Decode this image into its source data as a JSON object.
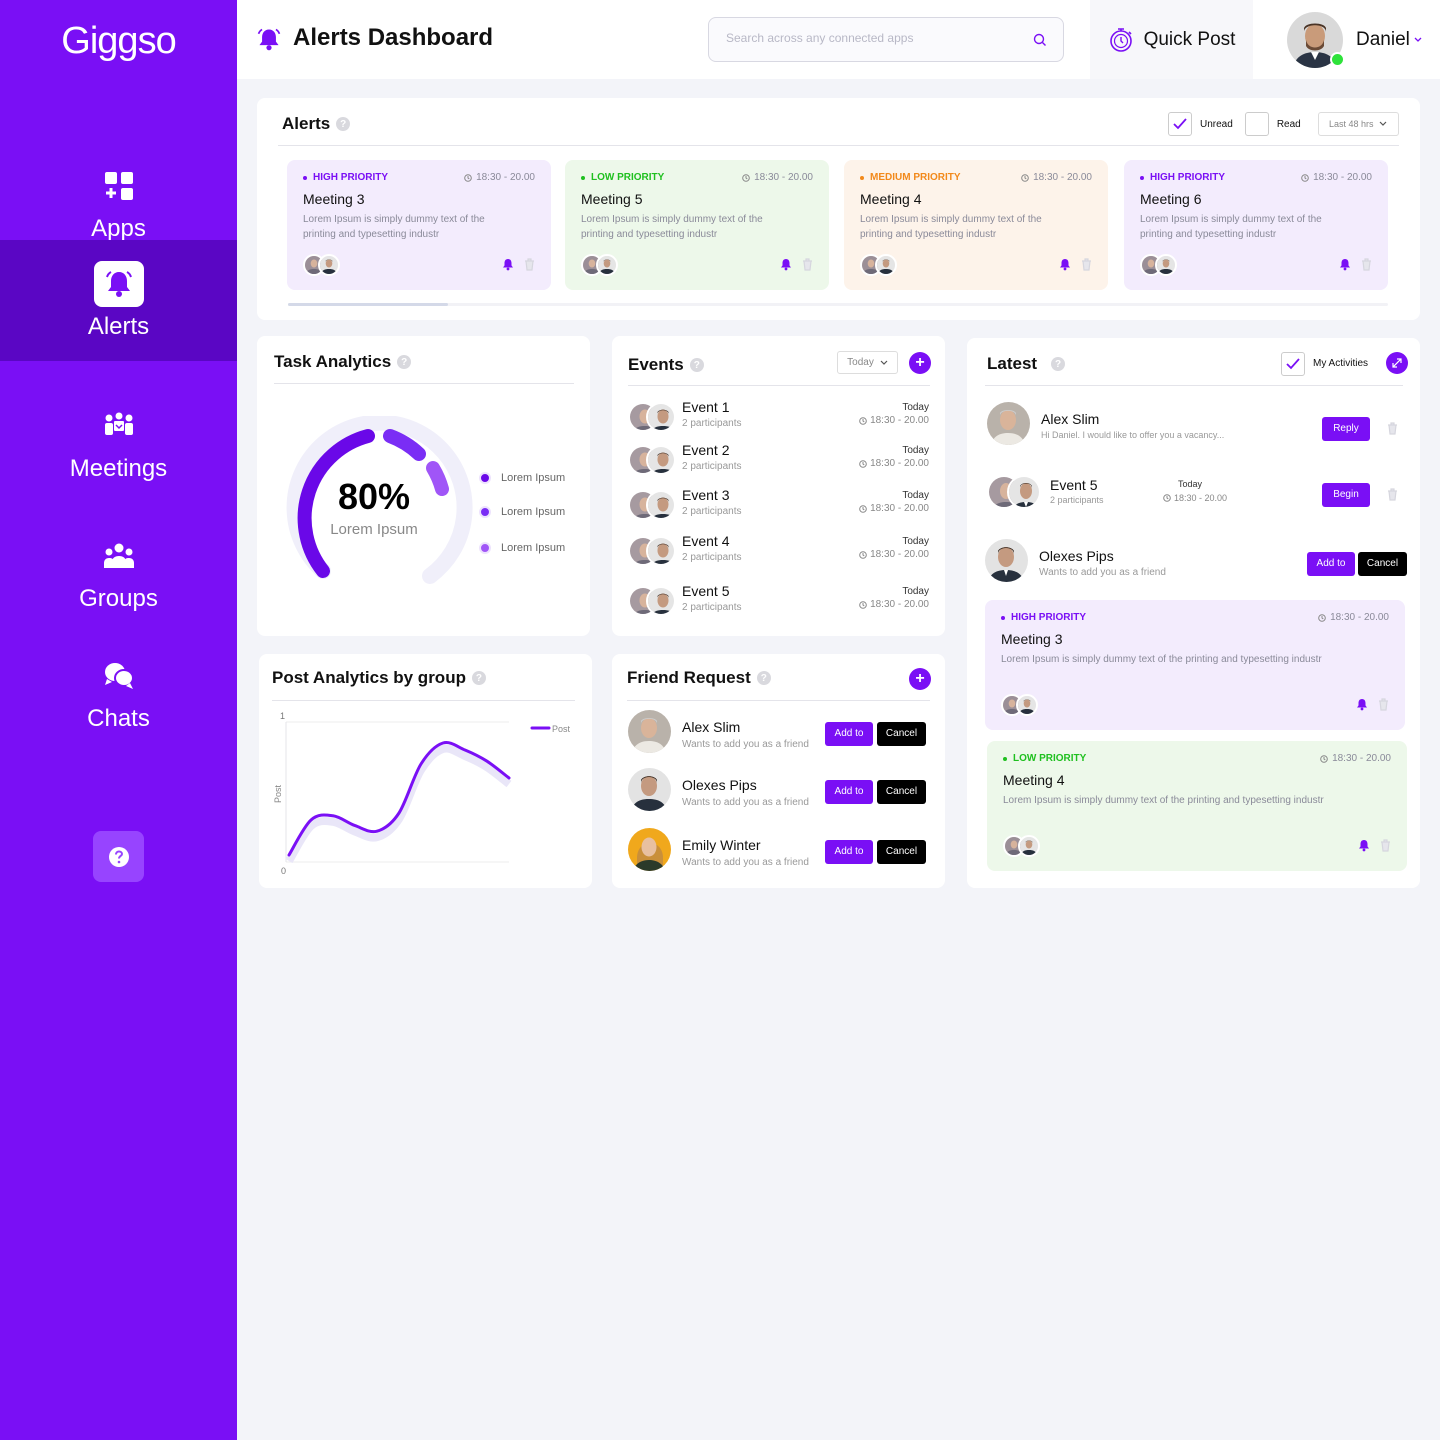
{
  "app": {
    "logo": "Giggso",
    "page_title": "Alerts Dashboard"
  },
  "nav": [
    {
      "label": "Apps",
      "icon": "apps-icon"
    },
    {
      "label": "Alerts",
      "icon": "bell-icon",
      "active": true
    },
    {
      "label": "Meetings",
      "icon": "meetings-icon"
    },
    {
      "label": "Groups",
      "icon": "groups-icon"
    },
    {
      "label": "Chats",
      "icon": "chats-icon"
    }
  ],
  "search": {
    "placeholder": "Search across any connected apps"
  },
  "quick_post": "Quick Post",
  "user": {
    "name": "Daniel",
    "status_color": "#2ee23a"
  },
  "colors": {
    "accent": "#7a0ff5",
    "sidebar": "#7a0ff5",
    "sidebar_active": "#5a06c4",
    "high": "#7a0ff5",
    "low": "#1fc01f",
    "medium": "#f2891b"
  },
  "alerts": {
    "title": "Alerts",
    "unread_label": "Unread",
    "read_label": "Read",
    "range": "Last 48 hrs",
    "cards": [
      {
        "priority": "HIGH PRIORITY",
        "time": "18:30 - 20.00",
        "title": "Meeting 3",
        "desc": "Lorem Ipsum is simply dummy text of the printing and typesetting industr"
      },
      {
        "priority": "LOW PRIORITY",
        "time": "18:30 - 20.00",
        "title": "Meeting 5",
        "desc": "Lorem Ipsum is simply dummy text of the printing and typesetting industr"
      },
      {
        "priority": "MEDIUM PRIORITY",
        "time": "18:30 - 20.00",
        "title": "Meeting 4",
        "desc": "Lorem Ipsum is simply dummy text of the printing and typesetting industr"
      },
      {
        "priority": "HIGH PRIORITY",
        "time": "18:30 - 20.00",
        "title": "Meeting 6",
        "desc": "Lorem Ipsum is simply dummy text of the printing and typesetting industr"
      }
    ]
  },
  "task_analytics": {
    "title": "Task Analytics",
    "percent": "80%",
    "percent_value": 80,
    "label": "Lorem Ipsum",
    "legend": [
      "Lorem Ipsum",
      "Lorem Ipsum",
      "Lorem Ipsum"
    ]
  },
  "events": {
    "title": "Events",
    "filter": "Today",
    "items": [
      {
        "name": "Event 1",
        "sub": "2 participants",
        "day": "Today",
        "time": "18:30 - 20.00"
      },
      {
        "name": "Event 2",
        "sub": "2 participants",
        "day": "Today",
        "time": "18:30 - 20.00"
      },
      {
        "name": "Event 3",
        "sub": "2 participants",
        "day": "Today",
        "time": "18:30 - 20.00"
      },
      {
        "name": "Event 4",
        "sub": "2 participants",
        "day": "Today",
        "time": "18:30 - 20.00"
      },
      {
        "name": "Event 5",
        "sub": "2 participants",
        "day": "Today",
        "time": "18:30 - 20.00"
      }
    ]
  },
  "latest": {
    "title": "Latest",
    "my_activities": "My Activities",
    "msg": {
      "name": "Alex Slim",
      "text": "Hi Daniel. I would like to offer you a vacancy...",
      "button": "Reply"
    },
    "event": {
      "name": "Event 5",
      "sub": "2 participants",
      "day": "Today",
      "time": "18:30 - 20.00",
      "button": "Begin"
    },
    "friend": {
      "name": "Olexes Pips",
      "sub": "Wants to add you as a friend",
      "add": "Add to",
      "cancel": "Cancel"
    },
    "alerts": [
      {
        "priority": "HIGH PRIORITY",
        "time": "18:30 - 20.00",
        "title": "Meeting 3",
        "desc": "Lorem Ipsum is simply dummy text of the printing and typesetting industr"
      },
      {
        "priority": "LOW PRIORITY",
        "time": "18:30 - 20.00",
        "title": "Meeting 4",
        "desc": "Lorem Ipsum is simply dummy text of the printing and typesetting industr"
      }
    ]
  },
  "post_analytics": {
    "title": "Post Analytics by group"
  },
  "friend_request": {
    "title": "Friend Request",
    "items": [
      {
        "name": "Alex Slim",
        "sub": "Wants to add you as a friend",
        "add": "Add to",
        "cancel": "Cancel"
      },
      {
        "name": "Olexes Pips",
        "sub": "Wants to add you as a friend",
        "add": "Add to",
        "cancel": "Cancel"
      },
      {
        "name": "Emily Winter",
        "sub": "Wants to add you as a friend",
        "add": "Add to",
        "cancel": "Cancel"
      }
    ]
  },
  "chart_data": {
    "type": "line",
    "title": "Post Analytics by group",
    "xlabel": "",
    "ylabel": "Post",
    "ylim": [
      0,
      1
    ],
    "yticks": [
      "0",
      "1"
    ],
    "legend": "top-right",
    "grid": false,
    "series": [
      {
        "name": "Post",
        "x": [
          0,
          0.1,
          0.2,
          0.3,
          0.4,
          0.5,
          0.6,
          0.7,
          0.8,
          0.9,
          1.0
        ],
        "values": [
          0.05,
          0.3,
          0.33,
          0.26,
          0.22,
          0.35,
          0.7,
          0.85,
          0.8,
          0.72,
          0.6
        ]
      }
    ]
  }
}
